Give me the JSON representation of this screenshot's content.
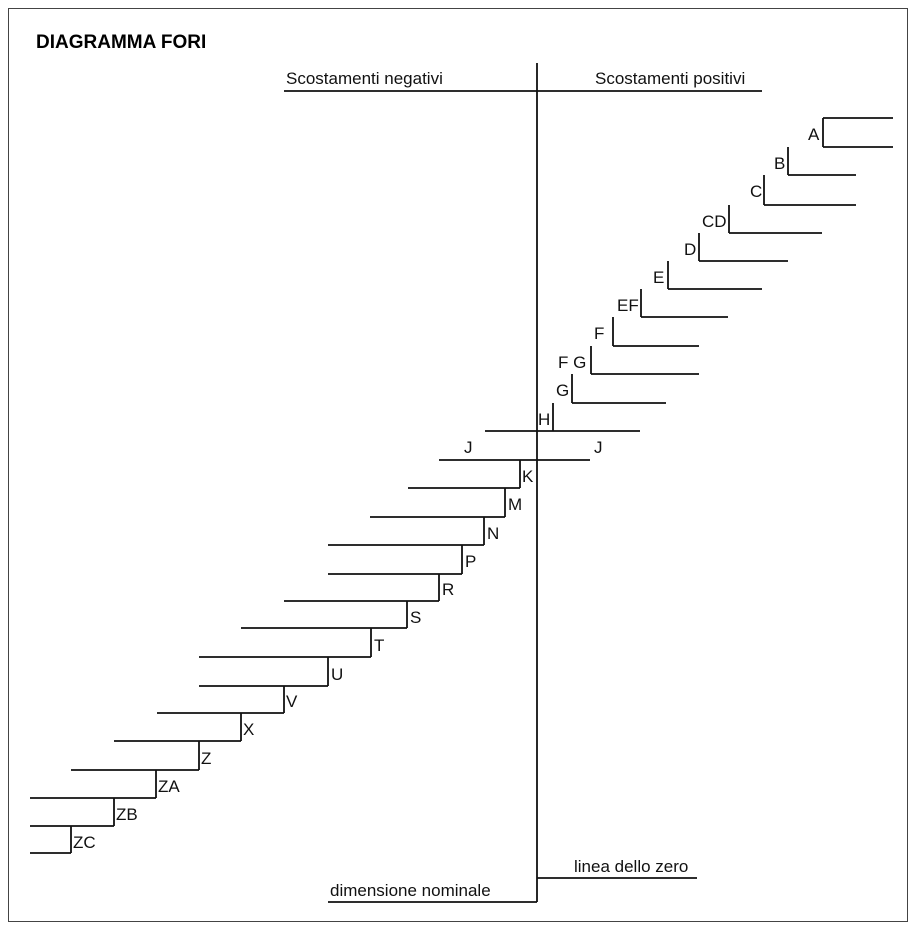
{
  "title": "DIAGRAMMA FORI",
  "headers": {
    "negative": "Scostamenti negativi",
    "positive": "Scostamenti positivi"
  },
  "bottom_labels": {
    "nominal": "dimensione nominale",
    "zero_line": "linea dello zero"
  },
  "deviation_labels": [
    "A",
    "B",
    "C",
    "CD",
    "D",
    "E",
    "EF",
    "F",
    "F G",
    "G",
    "H",
    "J",
    "J",
    "K",
    "M",
    "N",
    "P",
    "R",
    "S",
    "T",
    "U",
    "V",
    "X",
    "Z",
    "ZA",
    "ZB",
    "ZC"
  ]
}
